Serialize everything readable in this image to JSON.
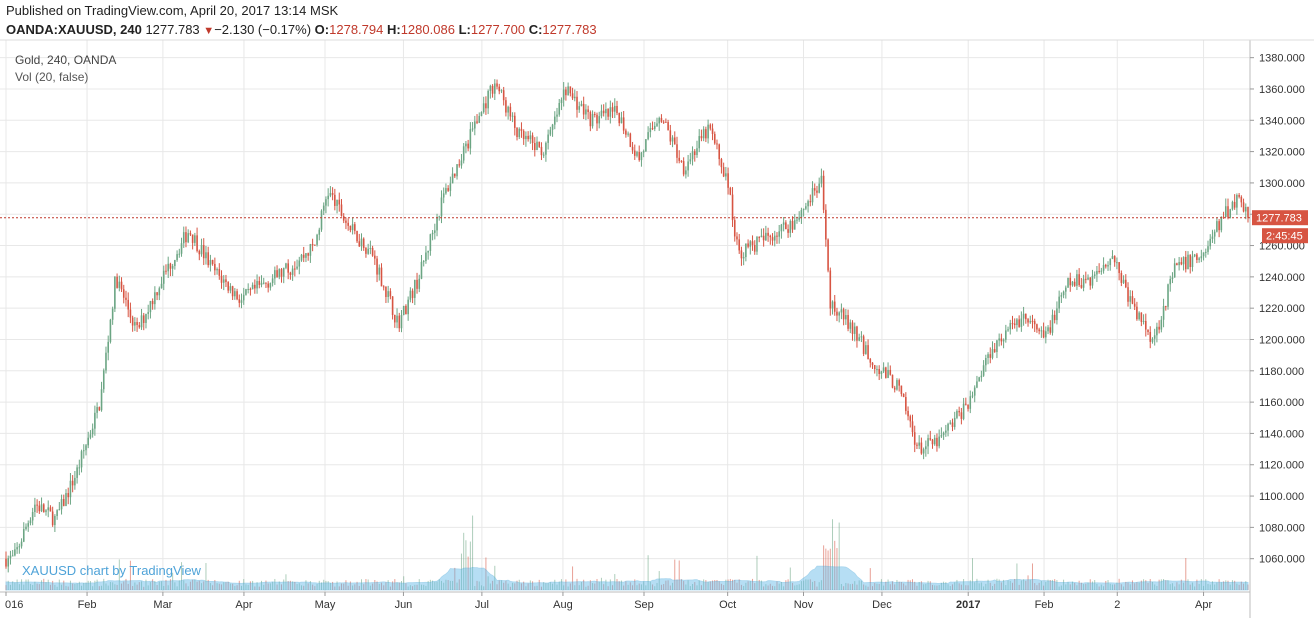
{
  "header": {
    "published": "Published on TradingView.com, April 20, 2017 13:14 MSK",
    "symbol": "OANDA:XAUUSD, 240",
    "last": "1277.783",
    "change": "−2.130 (−0.17%)",
    "o_label": "O:",
    "o": "1278.794",
    "h_label": "H:",
    "h": "1280.086",
    "l_label": "L:",
    "l": "1277.700",
    "c_label": "C:",
    "c": "1277.783"
  },
  "legend": {
    "main": "Gold, 240, OANDA",
    "vol": "Vol (20, false)"
  },
  "watermark": "XAUUSD chart by TradingView",
  "price_label": "1277.783",
  "countdown_label": "2:45:45",
  "colors": {
    "up": "#6ba583",
    "down": "#d75442",
    "volume_area": "#5fb8e8",
    "grid": "#e8e8e8",
    "price_line": "#c0392b"
  },
  "chart_data": {
    "type": "candlestick",
    "ylim": [
      1040,
      1390
    ],
    "y_ticks": [
      "1380.000",
      "1360.000",
      "1340.000",
      "1320.000",
      "1300.000",
      "1280.000",
      "1260.000",
      "1240.000",
      "1220.000",
      "1200.000",
      "1180.000",
      "1160.000",
      "1140.000",
      "1120.000",
      "1100.000",
      "1080.000",
      "1060.000"
    ],
    "x_labels": [
      "016",
      "Feb",
      "Mar",
      "Apr",
      "May",
      "Jun",
      "Jul",
      "Aug",
      "Sep",
      "Oct",
      "Nov",
      "Dec",
      "2017",
      "Feb",
      "2",
      "Apr"
    ],
    "last_price": 1277.783,
    "price_series": [
      {
        "date": "2016-01-04",
        "close": 1060
      },
      {
        "date": "2016-01-12",
        "close": 1095
      },
      {
        "date": "2016-01-20",
        "close": 1085
      },
      {
        "date": "2016-01-28",
        "close": 1115
      },
      {
        "date": "2016-02-06",
        "close": 1160
      },
      {
        "date": "2016-02-12",
        "close": 1240
      },
      {
        "date": "2016-02-20",
        "close": 1205
      },
      {
        "date": "2016-03-01",
        "close": 1240
      },
      {
        "date": "2016-03-11",
        "close": 1270
      },
      {
        "date": "2016-03-20",
        "close": 1245
      },
      {
        "date": "2016-03-31",
        "close": 1225
      },
      {
        "date": "2016-04-08",
        "close": 1235
      },
      {
        "date": "2016-04-18",
        "close": 1245
      },
      {
        "date": "2016-04-28",
        "close": 1260
      },
      {
        "date": "2016-05-03",
        "close": 1295
      },
      {
        "date": "2016-05-12",
        "close": 1270
      },
      {
        "date": "2016-05-20",
        "close": 1255
      },
      {
        "date": "2016-05-30",
        "close": 1210
      },
      {
        "date": "2016-06-07",
        "close": 1240
      },
      {
        "date": "2016-06-16",
        "close": 1290
      },
      {
        "date": "2016-06-24",
        "close": 1320
      },
      {
        "date": "2016-07-06",
        "close": 1365
      },
      {
        "date": "2016-07-15",
        "close": 1330
      },
      {
        "date": "2016-07-25",
        "close": 1320
      },
      {
        "date": "2016-08-02",
        "close": 1360
      },
      {
        "date": "2016-08-12",
        "close": 1340
      },
      {
        "date": "2016-08-22",
        "close": 1345
      },
      {
        "date": "2016-08-30",
        "close": 1315
      },
      {
        "date": "2016-09-07",
        "close": 1345
      },
      {
        "date": "2016-09-16",
        "close": 1310
      },
      {
        "date": "2016-09-26",
        "close": 1335
      },
      {
        "date": "2016-10-03",
        "close": 1300
      },
      {
        "date": "2016-10-07",
        "close": 1255
      },
      {
        "date": "2016-10-18",
        "close": 1265
      },
      {
        "date": "2016-10-28",
        "close": 1275
      },
      {
        "date": "2016-11-08",
        "close": 1300
      },
      {
        "date": "2016-11-11",
        "close": 1225
      },
      {
        "date": "2016-11-18",
        "close": 1210
      },
      {
        "date": "2016-11-28",
        "close": 1185
      },
      {
        "date": "2016-12-07",
        "close": 1170
      },
      {
        "date": "2016-12-15",
        "close": 1130
      },
      {
        "date": "2016-12-23",
        "close": 1135
      },
      {
        "date": "2017-01-03",
        "close": 1160
      },
      {
        "date": "2017-01-12",
        "close": 1195
      },
      {
        "date": "2017-01-24",
        "close": 1215
      },
      {
        "date": "2017-02-01",
        "close": 1200
      },
      {
        "date": "2017-02-10",
        "close": 1235
      },
      {
        "date": "2017-02-20",
        "close": 1240
      },
      {
        "date": "2017-02-27",
        "close": 1255
      },
      {
        "date": "2017-03-07",
        "close": 1220
      },
      {
        "date": "2017-03-15",
        "close": 1200
      },
      {
        "date": "2017-03-23",
        "close": 1245
      },
      {
        "date": "2017-04-03",
        "close": 1255
      },
      {
        "date": "2017-04-11",
        "close": 1280
      },
      {
        "date": "2017-04-17",
        "close": 1292
      },
      {
        "date": "2017-04-20",
        "close": 1277.783
      }
    ]
  }
}
